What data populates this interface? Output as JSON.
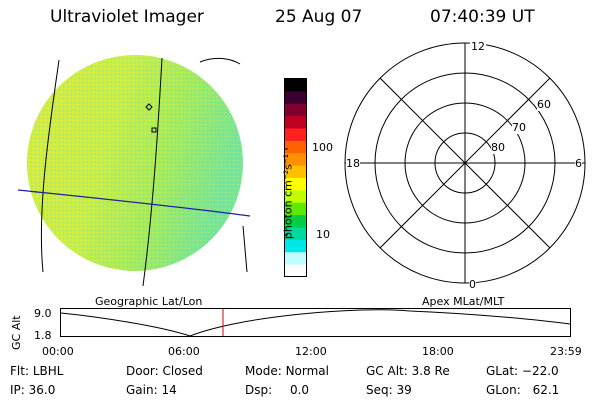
{
  "header": {
    "title": "Ultraviolet Imager",
    "date": "25 Aug 07",
    "time": "07:40:39 UT"
  },
  "colorbar": {
    "unit": "photon cm⁻²s⁻¹",
    "ticks": [
      "100",
      "10"
    ],
    "log_scale": true,
    "colors": [
      "#000000",
      "#3a0030",
      "#800030",
      "#c00020",
      "#ff2020",
      "#ff6000",
      "#ff9000",
      "#ffc000",
      "#ffff00",
      "#c0ff00",
      "#60e800",
      "#00d040",
      "#00d8a0",
      "#00e8e8",
      "#c0ffff",
      "#ffffff"
    ]
  },
  "geo_panel": {
    "label": "Geographic Lat/Lon"
  },
  "polar_panel": {
    "label": "Apex MLat/MLT",
    "mlt_labels": {
      "top": "12",
      "right": "6",
      "bottom": "0",
      "left": "18"
    },
    "lat_labels": [
      "60",
      "70",
      "80"
    ]
  },
  "altitude_plot": {
    "ylabel": "GC Alt",
    "yticks": [
      "9.0",
      "1.8"
    ],
    "xticks": [
      "00:00",
      "06:00",
      "12:00",
      "18:00",
      "23:59"
    ],
    "marker_time": "07:40"
  },
  "info": {
    "row1": [
      {
        "label": "Flt:",
        "value": "LBHL"
      },
      {
        "label": "Door:",
        "value": "Closed"
      },
      {
        "label": "Mode:",
        "value": "Normal"
      },
      {
        "label": "GC Alt:",
        "value": "3.8 Re"
      },
      {
        "label": "GLat:",
        "value": "−22.0"
      }
    ],
    "row2": [
      {
        "label": "IP:",
        "value": "36.0"
      },
      {
        "label": "Gain:",
        "value": "14"
      },
      {
        "label": "Dsp:",
        "value": "0.0"
      },
      {
        "label": "Seq:",
        "value": "39"
      },
      {
        "label": "GLon:",
        "value": "62.1"
      }
    ]
  }
}
